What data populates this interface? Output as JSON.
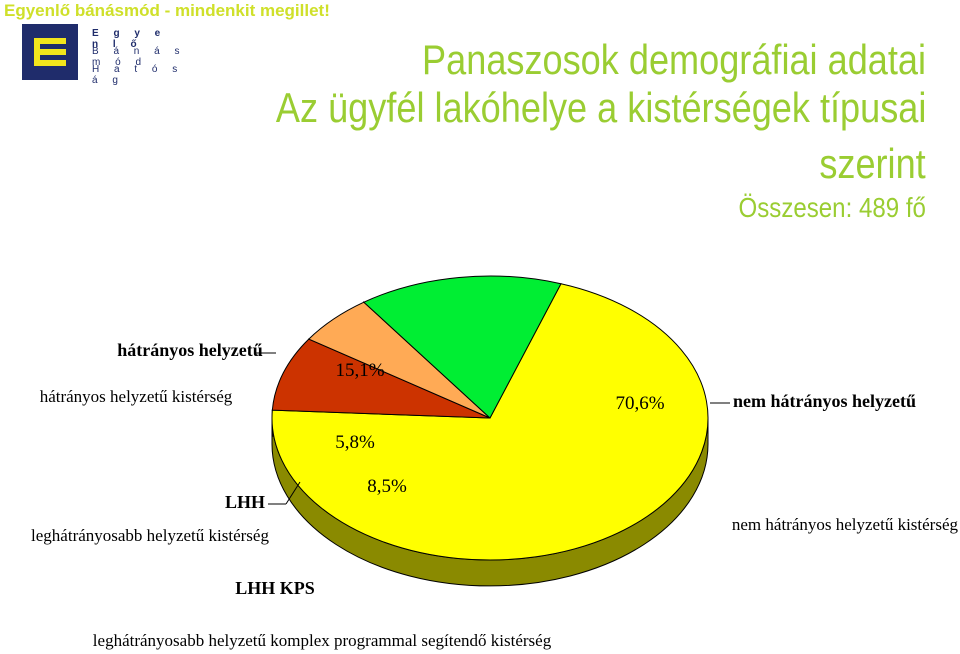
{
  "header": {
    "tagline": "Egyenlő bánásmód - mindenkit megillet!",
    "logo_lines": [
      "E g y e n l ő",
      "B á n á s m ó d",
      "H a t ó s á g"
    ]
  },
  "title": {
    "line1": "Panaszosok demográfiai adatai",
    "line2": "Az ügyfél lakóhelye a kistérségek típusai",
    "line3": "szerint",
    "total": "Összesen: 489 fő"
  },
  "colors": {
    "title": "#9acd32",
    "logo": "#1f2c6b",
    "yellow": "#ffff00",
    "green": "#00ee33",
    "orange": "#ffaa55",
    "red": "#cc3300"
  },
  "chart_data": {
    "type": "pie",
    "title": "",
    "slices": [
      {
        "label": "nem hátrányos helyzetű",
        "description": "nem hátrányos helyzetű kistérség",
        "value": 70.6,
        "value_label": "70,6%",
        "color": "#ffff00",
        "side_color": "#8a8a00"
      },
      {
        "label": "LHH KPS",
        "description": "leghátrányosabb helyzetű komplex programmal segítendő kistérség",
        "value": 8.5,
        "value_label": "8,5%",
        "color": "#cc3300",
        "side_color": "#6a1800"
      },
      {
        "label": "LHH",
        "description": "leghátrányosabb helyzetű kistérség",
        "value": 5.8,
        "value_label": "5,8%",
        "color": "#ffaa55",
        "side_color": "#8a5020"
      },
      {
        "label": "hátrányos helyzetű",
        "description": "hátrányos helyzetű kistérség",
        "value": 15.1,
        "value_label": "15,1%",
        "color": "#00ee33",
        "side_color": "#007a1a"
      }
    ]
  }
}
